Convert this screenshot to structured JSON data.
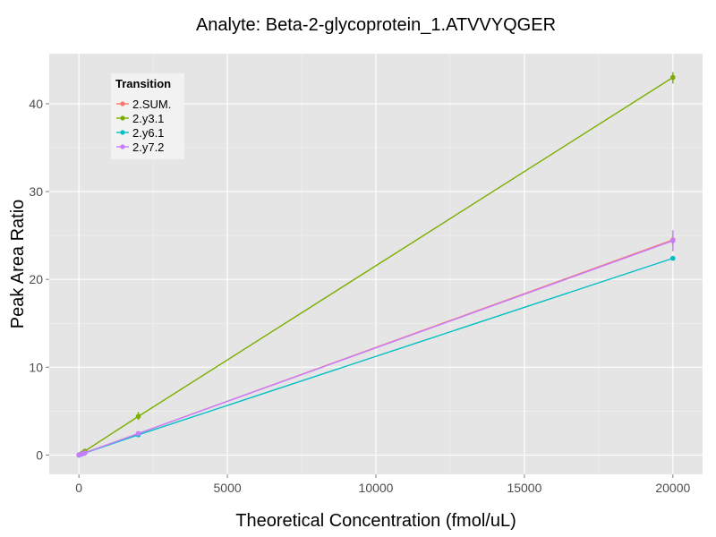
{
  "chart_data": {
    "type": "line",
    "title": "Analyte: Beta-2-glycoprotein_1.ATVVYQGER",
    "xlabel": "Theoretical Concentration (fmol/uL)",
    "ylabel": "Peak Area Ratio",
    "xlim": [
      -1000,
      21000
    ],
    "ylim": [
      -2.2,
      45.7
    ],
    "x_ticks": [
      0,
      5000,
      10000,
      15000,
      20000
    ],
    "y_ticks": [
      0,
      10,
      20,
      30,
      40
    ],
    "grid": true,
    "legend": {
      "title": "Transition",
      "placement": "top-left"
    },
    "series": [
      {
        "name": "2.SUM.",
        "color": "#F8766D",
        "points": [
          {
            "x": 0,
            "y": 0.0
          },
          {
            "x": 20,
            "y": 0.03
          },
          {
            "x": 100,
            "y": 0.12
          },
          {
            "x": 200,
            "y": 0.25
          },
          {
            "x": 2000,
            "y": 2.45
          },
          {
            "x": 20000,
            "y": 24.5
          }
        ],
        "error": [
          {
            "x": 20000,
            "low": 23.8,
            "high": 25.1
          }
        ]
      },
      {
        "name": "2.y3.1",
        "color": "#7CAE00",
        "points": [
          {
            "x": 0,
            "y": 0.0
          },
          {
            "x": 20,
            "y": 0.05
          },
          {
            "x": 100,
            "y": 0.2
          },
          {
            "x": 200,
            "y": 0.45
          },
          {
            "x": 2000,
            "y": 4.4
          },
          {
            "x": 20000,
            "y": 43.0
          }
        ],
        "error": [
          {
            "x": 2000,
            "low": 4.0,
            "high": 4.9
          },
          {
            "x": 20000,
            "low": 42.3,
            "high": 43.6
          }
        ]
      },
      {
        "name": "2.y6.1",
        "color": "#00BFC4",
        "points": [
          {
            "x": 0,
            "y": 0.0
          },
          {
            "x": 20,
            "y": 0.02
          },
          {
            "x": 100,
            "y": 0.11
          },
          {
            "x": 200,
            "y": 0.23
          },
          {
            "x": 2000,
            "y": 2.3
          },
          {
            "x": 20000,
            "y": 22.4
          }
        ],
        "error": []
      },
      {
        "name": "2.y7.2",
        "color": "#C77CFF",
        "points": [
          {
            "x": 0,
            "y": 0.0
          },
          {
            "x": 20,
            "y": 0.03
          },
          {
            "x": 100,
            "y": 0.12
          },
          {
            "x": 200,
            "y": 0.25
          },
          {
            "x": 2000,
            "y": 2.45
          },
          {
            "x": 20000,
            "y": 24.4
          }
        ],
        "error": [
          {
            "x": 20000,
            "low": 23.2,
            "high": 25.6
          }
        ]
      }
    ]
  }
}
